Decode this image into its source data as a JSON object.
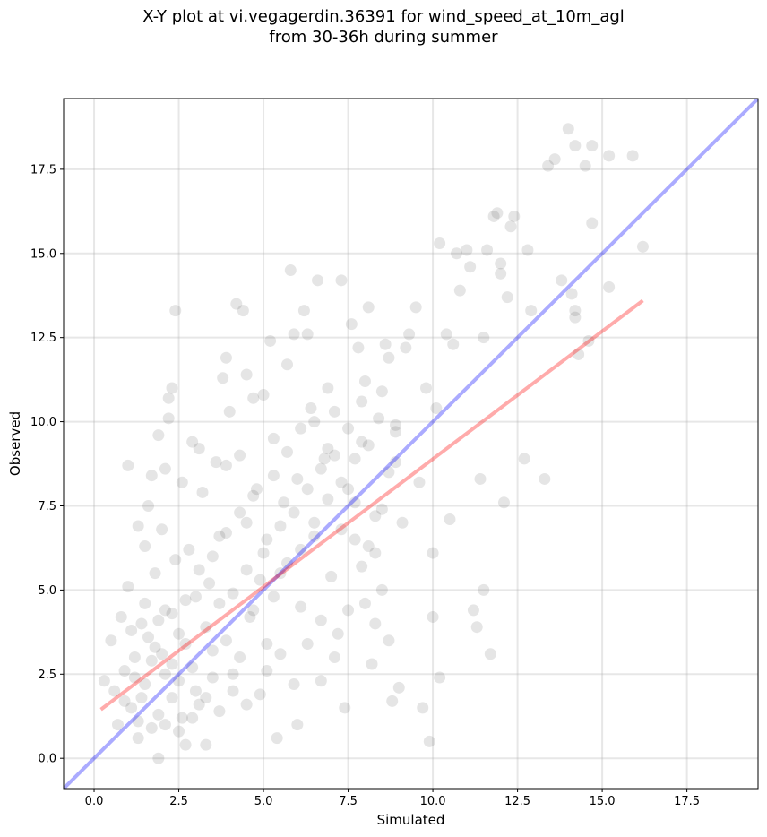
{
  "chart_data": {
    "type": "scatter",
    "title_line1": "X-Y plot at vi.vegagerdin.36391 for wind_speed_at_10m_agl",
    "title_line2": "from 30-36h during summer",
    "xlabel": "Simulated",
    "ylabel": "Observed",
    "xlim": [
      -0.9,
      19.6
    ],
    "ylim": [
      -0.9,
      19.6
    ],
    "xticks": [
      0.0,
      2.5,
      5.0,
      7.5,
      10.0,
      12.5,
      15.0,
      17.5
    ],
    "yticks": [
      0.0,
      2.5,
      5.0,
      7.5,
      10.0,
      12.5,
      15.0,
      17.5
    ],
    "grid": true,
    "point_color": "#000000",
    "point_alpha": 0.1,
    "points": [
      [
        0.3,
        2.3
      ],
      [
        0.5,
        3.5
      ],
      [
        0.6,
        2.0
      ],
      [
        0.7,
        1.0
      ],
      [
        0.8,
        4.2
      ],
      [
        0.9,
        2.6
      ],
      [
        1.0,
        8.7
      ],
      [
        1.0,
        5.1
      ],
      [
        1.1,
        1.5
      ],
      [
        1.2,
        3.0
      ],
      [
        1.3,
        0.6
      ],
      [
        1.3,
        6.9
      ],
      [
        1.4,
        4.0
      ],
      [
        1.5,
        2.2
      ],
      [
        1.5,
        6.3
      ],
      [
        1.6,
        7.5
      ],
      [
        1.7,
        8.4
      ],
      [
        1.8,
        3.3
      ],
      [
        1.8,
        5.5
      ],
      [
        1.9,
        0.0
      ],
      [
        1.9,
        9.6
      ],
      [
        2.0,
        6.8
      ],
      [
        2.1,
        4.4
      ],
      [
        2.1,
        8.6
      ],
      [
        2.2,
        10.1
      ],
      [
        2.2,
        10.7
      ],
      [
        2.3,
        11.0
      ],
      [
        2.3,
        2.8
      ],
      [
        2.4,
        13.3
      ],
      [
        2.4,
        5.9
      ],
      [
        2.5,
        3.7
      ],
      [
        2.6,
        8.2
      ],
      [
        2.6,
        1.2
      ],
      [
        2.7,
        0.4
      ],
      [
        2.8,
        6.2
      ],
      [
        2.9,
        9.4
      ],
      [
        3.0,
        4.8
      ],
      [
        3.0,
        2.0
      ],
      [
        3.1,
        9.2
      ],
      [
        3.2,
        7.9
      ],
      [
        3.3,
        0.4
      ],
      [
        3.4,
        5.2
      ],
      [
        3.5,
        3.2
      ],
      [
        3.6,
        8.8
      ],
      [
        3.7,
        6.6
      ],
      [
        3.8,
        11.3
      ],
      [
        3.9,
        11.9
      ],
      [
        3.9,
        8.7
      ],
      [
        4.0,
        10.3
      ],
      [
        4.1,
        2.5
      ],
      [
        4.2,
        13.5
      ],
      [
        4.3,
        9.0
      ],
      [
        4.4,
        13.3
      ],
      [
        4.5,
        7.0
      ],
      [
        4.5,
        11.4
      ],
      [
        4.6,
        4.2
      ],
      [
        4.7,
        10.7
      ],
      [
        4.8,
        8.0
      ],
      [
        4.9,
        1.9
      ],
      [
        5.0,
        10.8
      ],
      [
        5.0,
        6.1
      ],
      [
        5.1,
        3.4
      ],
      [
        5.2,
        12.4
      ],
      [
        5.3,
        9.5
      ],
      [
        5.4,
        0.6
      ],
      [
        5.5,
        5.5
      ],
      [
        5.6,
        7.6
      ],
      [
        5.7,
        11.7
      ],
      [
        5.8,
        14.5
      ],
      [
        5.9,
        12.6
      ],
      [
        6.0,
        8.3
      ],
      [
        6.0,
        1.0
      ],
      [
        6.1,
        4.5
      ],
      [
        6.2,
        13.3
      ],
      [
        6.3,
        12.6
      ],
      [
        6.4,
        10.4
      ],
      [
        6.5,
        6.6
      ],
      [
        6.6,
        14.2
      ],
      [
        6.7,
        2.3
      ],
      [
        6.8,
        8.9
      ],
      [
        6.9,
        11.0
      ],
      [
        7.0,
        5.4
      ],
      [
        7.1,
        10.3
      ],
      [
        7.2,
        3.7
      ],
      [
        7.3,
        14.2
      ],
      [
        7.4,
        1.5
      ],
      [
        7.5,
        8.0
      ],
      [
        7.6,
        12.9
      ],
      [
        7.7,
        6.5
      ],
      [
        7.8,
        12.2
      ],
      [
        7.9,
        9.4
      ],
      [
        8.0,
        11.2
      ],
      [
        8.0,
        4.6
      ],
      [
        8.1,
        13.4
      ],
      [
        8.2,
        2.8
      ],
      [
        8.3,
        7.2
      ],
      [
        8.4,
        10.1
      ],
      [
        8.5,
        5.0
      ],
      [
        8.6,
        12.3
      ],
      [
        8.7,
        11.9
      ],
      [
        8.8,
        1.7
      ],
      [
        8.9,
        9.7
      ],
      [
        9.0,
        2.1
      ],
      [
        9.1,
        7.0
      ],
      [
        9.2,
        12.2
      ],
      [
        9.3,
        12.6
      ],
      [
        9.5,
        13.4
      ],
      [
        9.6,
        8.2
      ],
      [
        9.7,
        1.5
      ],
      [
        9.8,
        11.0
      ],
      [
        9.9,
        0.5
      ],
      [
        10.0,
        6.1
      ],
      [
        10.0,
        4.2
      ],
      [
        10.1,
        10.4
      ],
      [
        10.2,
        2.4
      ],
      [
        10.2,
        15.3
      ],
      [
        10.4,
        12.6
      ],
      [
        10.5,
        7.1
      ],
      [
        10.6,
        12.3
      ],
      [
        10.7,
        15.0
      ],
      [
        10.8,
        13.9
      ],
      [
        11.0,
        15.1
      ],
      [
        11.1,
        14.6
      ],
      [
        11.2,
        4.4
      ],
      [
        11.3,
        3.9
      ],
      [
        11.4,
        8.3
      ],
      [
        11.5,
        5.0
      ],
      [
        11.5,
        12.5
      ],
      [
        11.6,
        15.1
      ],
      [
        11.7,
        3.1
      ],
      [
        11.8,
        16.1
      ],
      [
        11.9,
        16.2
      ],
      [
        12.0,
        14.7
      ],
      [
        12.0,
        14.4
      ],
      [
        12.1,
        7.6
      ],
      [
        12.2,
        13.7
      ],
      [
        12.3,
        15.8
      ],
      [
        12.4,
        16.1
      ],
      [
        12.7,
        8.9
      ],
      [
        12.8,
        15.1
      ],
      [
        12.9,
        13.3
      ],
      [
        13.3,
        8.3
      ],
      [
        13.4,
        17.6
      ],
      [
        13.6,
        17.8
      ],
      [
        13.8,
        14.2
      ],
      [
        14.0,
        18.7
      ],
      [
        14.1,
        13.8
      ],
      [
        14.2,
        13.1
      ],
      [
        14.2,
        13.3
      ],
      [
        14.2,
        18.2
      ],
      [
        14.3,
        12.0
      ],
      [
        14.5,
        17.6
      ],
      [
        14.6,
        12.4
      ],
      [
        14.7,
        18.2
      ],
      [
        14.7,
        15.9
      ],
      [
        15.2,
        14.0
      ],
      [
        15.2,
        17.9
      ],
      [
        15.9,
        17.9
      ],
      [
        16.2,
        15.2
      ],
      [
        1.2,
        2.4
      ],
      [
        1.4,
        1.8
      ],
      [
        1.6,
        3.6
      ],
      [
        1.7,
        2.9
      ],
      [
        1.9,
        1.3
      ],
      [
        2.0,
        3.1
      ],
      [
        2.1,
        2.5
      ],
      [
        2.3,
        1.8
      ],
      [
        2.5,
        2.3
      ],
      [
        2.7,
        3.4
      ],
      [
        2.9,
        2.7
      ],
      [
        3.1,
        1.6
      ],
      [
        3.3,
        3.9
      ],
      [
        3.5,
        2.4
      ],
      [
        3.7,
        4.6
      ],
      [
        3.9,
        3.5
      ],
      [
        4.1,
        4.9
      ],
      [
        4.3,
        3.0
      ],
      [
        4.5,
        5.6
      ],
      [
        4.7,
        4.4
      ],
      [
        4.9,
        5.3
      ],
      [
        5.1,
        6.5
      ],
      [
        5.3,
        4.8
      ],
      [
        5.5,
        6.9
      ],
      [
        5.7,
        5.8
      ],
      [
        5.9,
        7.3
      ],
      [
        6.1,
        6.2
      ],
      [
        6.3,
        8.0
      ],
      [
        6.5,
        7.0
      ],
      [
        6.7,
        8.6
      ],
      [
        6.9,
        7.7
      ],
      [
        7.1,
        9.0
      ],
      [
        7.3,
        8.2
      ],
      [
        7.5,
        9.8
      ],
      [
        7.7,
        8.9
      ],
      [
        7.9,
        10.6
      ],
      [
        8.1,
        9.3
      ],
      [
        8.3,
        6.1
      ],
      [
        8.5,
        10.9
      ],
      [
        8.7,
        8.5
      ],
      [
        8.9,
        9.9
      ],
      [
        0.9,
        1.7
      ],
      [
        1.1,
        3.8
      ],
      [
        1.3,
        1.1
      ],
      [
        1.5,
        4.6
      ],
      [
        1.7,
        0.9
      ],
      [
        1.9,
        4.1
      ],
      [
        2.1,
        1.0
      ],
      [
        2.3,
        4.3
      ],
      [
        2.5,
        0.8
      ],
      [
        2.7,
        4.7
      ],
      [
        2.9,
        1.2
      ],
      [
        3.1,
        5.6
      ],
      [
        3.3,
        1.8
      ],
      [
        3.5,
        6.0
      ],
      [
        3.7,
        1.4
      ],
      [
        3.9,
        6.7
      ],
      [
        4.1,
        2.0
      ],
      [
        4.3,
        7.3
      ],
      [
        4.5,
        1.6
      ],
      [
        4.7,
        7.8
      ],
      [
        5.1,
        2.6
      ],
      [
        5.3,
        8.4
      ],
      [
        5.5,
        3.1
      ],
      [
        5.7,
        9.1
      ],
      [
        5.9,
        2.2
      ],
      [
        6.1,
        9.8
      ],
      [
        6.3,
        3.4
      ],
      [
        6.5,
        10.0
      ],
      [
        6.7,
        4.1
      ],
      [
        6.9,
        9.2
      ],
      [
        7.1,
        3.0
      ],
      [
        7.3,
        6.8
      ],
      [
        7.5,
        4.4
      ],
      [
        7.7,
        7.6
      ],
      [
        7.9,
        5.7
      ],
      [
        8.1,
        6.3
      ],
      [
        8.3,
        4.0
      ],
      [
        8.5,
        7.4
      ],
      [
        8.7,
        3.5
      ],
      [
        8.9,
        8.8
      ]
    ],
    "lines": [
      {
        "type": "1:1 reference",
        "color": "#0000ff",
        "alpha": 0.33,
        "x": [
          -0.9,
          19.6
        ],
        "y": [
          -0.9,
          19.6
        ]
      },
      {
        "type": "regression fit",
        "color": "#ff0000",
        "alpha": 0.33,
        "x": [
          0.2,
          16.2
        ],
        "y": [
          1.45,
          13.6
        ]
      }
    ]
  }
}
